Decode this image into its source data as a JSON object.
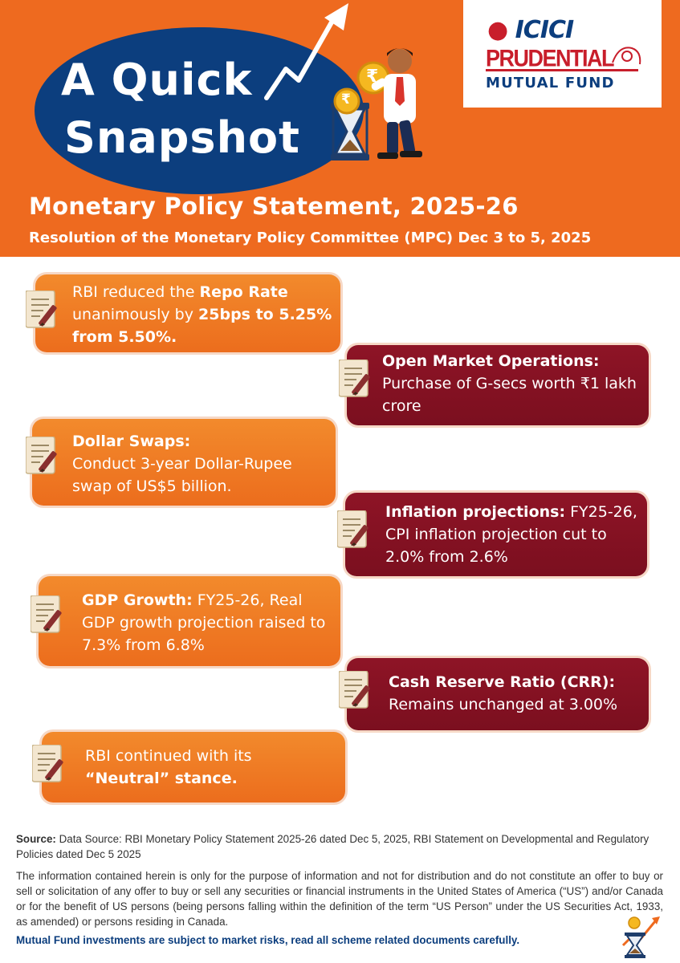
{
  "header": {
    "snapshot_line1": "A Quick",
    "snapshot_line2": "Snapshot",
    "title": "Monetary Policy Statement, 2025-26",
    "subtitle": "Resolution of the Monetary Policy Committee (MPC) Dec 3 to 5, 2025",
    "rupee_symbol": "₹"
  },
  "logo": {
    "line1": "ICICI",
    "line2": "PRUDENTIAL",
    "line3": "MUTUAL FUND"
  },
  "cards": {
    "repo": {
      "t1": "RBI reduced the ",
      "b1": "Repo Rate",
      "t2": " unanimously by ",
      "b2": "25bps to 5.25% from 5.50%."
    },
    "omo": {
      "head": "Open Market Operations:",
      "body": "Purchase of G-secs worth ₹1 lakh crore"
    },
    "swap": {
      "head": "Dollar Swaps:",
      "body": "Conduct 3-year Dollar-Rupee swap of US$5 billion."
    },
    "inflation": {
      "head": "Inflation projections:",
      "body": " FY25-26, CPI inflation projection cut to 2.0% from 2.6%"
    },
    "gdp": {
      "head": "GDP Growth:",
      "body": " FY25-26, Real GDP growth projection raised to 7.3% from 6.8%"
    },
    "crr": {
      "head": "Cash Reserve Ratio (CRR):",
      "body": "Remains unchanged at 3.00%"
    },
    "stance": {
      "t1": "RBI continued with its ",
      "b1": "“Neutral” stance."
    }
  },
  "footer": {
    "source_label": "Source:",
    "source_text": " Data Source: RBI Monetary Policy Statement 2025-26 dated Dec 5, 2025, RBI Statement on Developmental and Regulatory Policies  dated Dec 5 2025",
    "disclaimer": "The information contained herein is only for the purpose of information and not for distribution and do not constitute an offer to buy or sell or solicitation of any offer to buy or sell any securities or financial instruments in the United States of America (“US”) and/or Canada or for the benefit of US persons (being persons falling within the definition of the term “US Person” under the US Securities Act, 1933, as amended) or persons residing in Canada.",
    "warning": "Mutual Fund investments are subject to market risks, read all scheme related documents carefully."
  },
  "icons": [
    "growth-arrow-icon",
    "hourglass-icon",
    "rupee-coin-icon",
    "document-pen-icon",
    "businessman-illustration"
  ],
  "colors": {
    "header_orange": "#ee6a1f",
    "card_orange": "#ec6d1d",
    "card_red": "#7b0f1f",
    "navy": "#0c3e7e",
    "brand_red": "#c81e2b"
  }
}
